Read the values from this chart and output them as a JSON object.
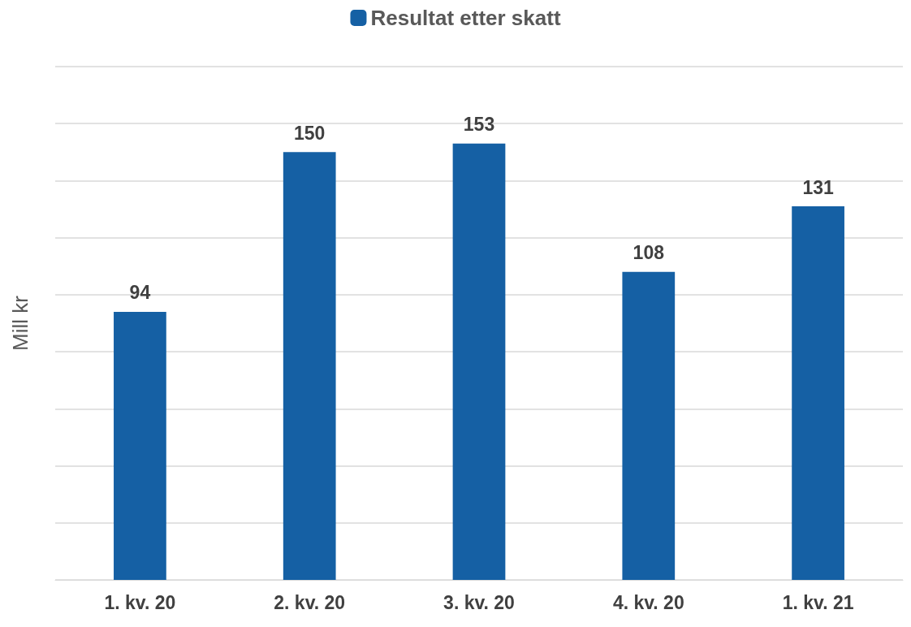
{
  "chart_data": {
    "type": "bar",
    "ylabel": "Mill kr",
    "categories": [
      "1. kv. 20",
      "2. kv. 20",
      "3. kv. 20",
      "4. kv. 20",
      "1. kv. 21"
    ],
    "series": [
      {
        "name": "Resultat etter skatt",
        "color": "#1560a4",
        "values": [
          94,
          150,
          153,
          108,
          131
        ]
      }
    ],
    "ylim": [
      0,
      180
    ],
    "yticks": [
      {
        "value": 0,
        "label": null
      },
      {
        "value": 20,
        "label": null
      },
      {
        "value": 40,
        "label": null
      },
      {
        "value": 60,
        "label": null
      },
      {
        "value": 80,
        "label": null
      },
      {
        "value": 100,
        "label": null
      },
      {
        "value": 120,
        "label": null
      },
      {
        "value": 140,
        "label": null
      },
      {
        "value": 160,
        "label": null
      },
      {
        "value": 180,
        "label": null
      }
    ],
    "grid": "y",
    "legend": "top",
    "data_labels": true,
    "tick_labels": "x"
  }
}
